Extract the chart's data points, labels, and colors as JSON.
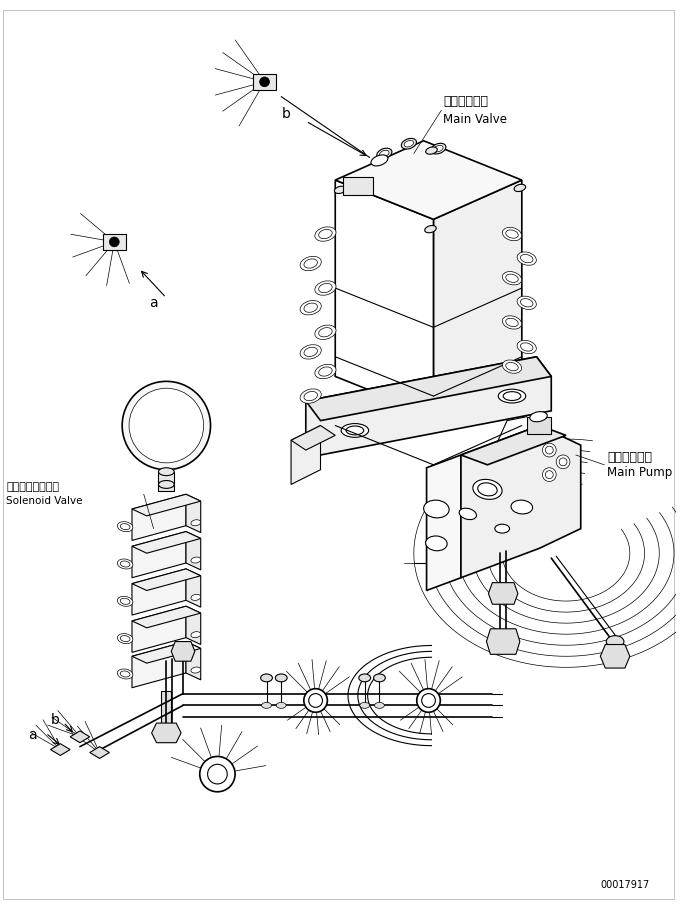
{
  "background_color": "#ffffff",
  "line_color": "#000000",
  "fig_width": 6.87,
  "fig_height": 9.09,
  "dpi": 100,
  "part_number": "00017917",
  "labels": {
    "main_valve_jp": "メインバルブ",
    "main_valve_en": "Main Valve",
    "main_pump_jp": "メインポンプ",
    "main_pump_en": "Main Pump",
    "solenoid_valve_jp": "ソレノイドバルブ",
    "solenoid_valve_en": "Solenoid Valve"
  }
}
